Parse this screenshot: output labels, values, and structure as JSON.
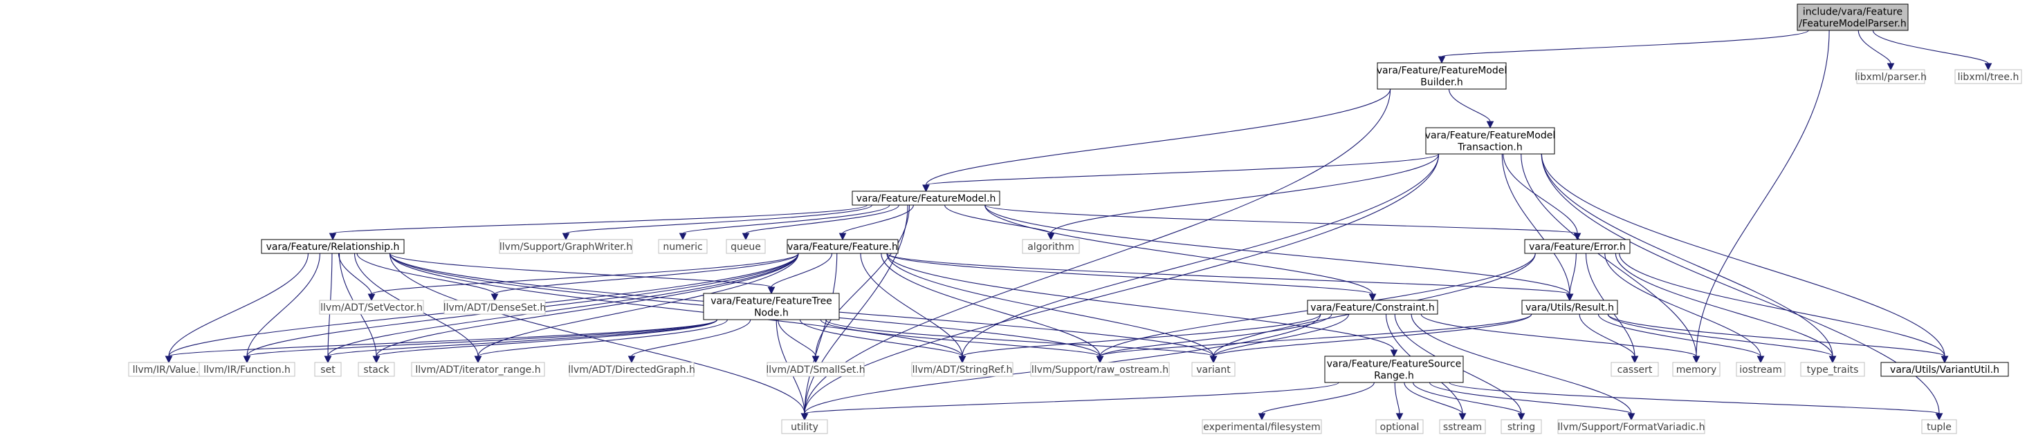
{
  "title": "include/vara/Feature/FeatureModelParser.h",
  "colors": {
    "edge": "#191970",
    "main_fill": "#bfbfbf",
    "external_border": "#bfbfbf",
    "border": "#000000"
  },
  "nodes": [
    {
      "id": "parser",
      "lines": [
        "include/vara/Feature",
        "/FeatureModelParser.h"
      ],
      "kind": "main"
    },
    {
      "id": "fmbuilder",
      "lines": [
        "vara/Feature/FeatureModel",
        "Builder.h"
      ],
      "kind": "internal"
    },
    {
      "id": "libxml_parser",
      "lines": [
        "libxml/parser.h"
      ],
      "kind": "external"
    },
    {
      "id": "libxml_tree",
      "lines": [
        "libxml/tree.h"
      ],
      "kind": "external"
    },
    {
      "id": "fmtransaction",
      "lines": [
        "vara/Feature/FeatureModel",
        "Transaction.h"
      ],
      "kind": "internal"
    },
    {
      "id": "featuremodel",
      "lines": [
        "vara/Feature/FeatureModel.h"
      ],
      "kind": "internal"
    },
    {
      "id": "relationship",
      "lines": [
        "vara/Feature/Relationship.h"
      ],
      "kind": "internal"
    },
    {
      "id": "graphwriter",
      "lines": [
        "llvm/Support/GraphWriter.h"
      ],
      "kind": "external"
    },
    {
      "id": "numeric",
      "lines": [
        "numeric"
      ],
      "kind": "external"
    },
    {
      "id": "queue",
      "lines": [
        "queue"
      ],
      "kind": "external"
    },
    {
      "id": "feature",
      "lines": [
        "vara/Feature/Feature.h"
      ],
      "kind": "internal"
    },
    {
      "id": "algorithm",
      "lines": [
        "algorithm"
      ],
      "kind": "external"
    },
    {
      "id": "error",
      "lines": [
        "vara/Feature/Error.h"
      ],
      "kind": "internal"
    },
    {
      "id": "setvector",
      "lines": [
        "llvm/ADT/SetVector.h"
      ],
      "kind": "external"
    },
    {
      "id": "denseset",
      "lines": [
        "llvm/ADT/DenseSet.h"
      ],
      "kind": "external"
    },
    {
      "id": "featuretree",
      "lines": [
        "vara/Feature/FeatureTree",
        "Node.h"
      ],
      "kind": "internal"
    },
    {
      "id": "constraint",
      "lines": [
        "vara/Feature/Constraint.h"
      ],
      "kind": "internal"
    },
    {
      "id": "result",
      "lines": [
        "vara/Utils/Result.h"
      ],
      "kind": "internal"
    },
    {
      "id": "irvalue",
      "lines": [
        "llvm/IR/Value.h"
      ],
      "kind": "external"
    },
    {
      "id": "irfunction",
      "lines": [
        "llvm/IR/Function.h"
      ],
      "kind": "external"
    },
    {
      "id": "set",
      "lines": [
        "set"
      ],
      "kind": "external"
    },
    {
      "id": "stack",
      "lines": [
        "stack"
      ],
      "kind": "external"
    },
    {
      "id": "iterrange",
      "lines": [
        "llvm/ADT/iterator_range.h"
      ],
      "kind": "external"
    },
    {
      "id": "directedgraph",
      "lines": [
        "llvm/ADT/DirectedGraph.h"
      ],
      "kind": "external"
    },
    {
      "id": "smallset",
      "lines": [
        "llvm/ADT/SmallSet.h"
      ],
      "kind": "external"
    },
    {
      "id": "stringref",
      "lines": [
        "llvm/ADT/StringRef.h"
      ],
      "kind": "external"
    },
    {
      "id": "rawostream",
      "lines": [
        "llvm/Support/raw_ostream.h"
      ],
      "kind": "external"
    },
    {
      "id": "variant",
      "lines": [
        "variant"
      ],
      "kind": "external"
    },
    {
      "id": "sourcerange",
      "lines": [
        "vara/Feature/FeatureSource",
        "Range.h"
      ],
      "kind": "internal"
    },
    {
      "id": "cassert",
      "lines": [
        "cassert"
      ],
      "kind": "external"
    },
    {
      "id": "memory",
      "lines": [
        "memory"
      ],
      "kind": "external"
    },
    {
      "id": "iostream",
      "lines": [
        "iostream"
      ],
      "kind": "external"
    },
    {
      "id": "typetraits",
      "lines": [
        "type_traits"
      ],
      "kind": "external"
    },
    {
      "id": "variantutil",
      "lines": [
        "vara/Utils/VariantUtil.h"
      ],
      "kind": "internal"
    },
    {
      "id": "utility",
      "lines": [
        "utility"
      ],
      "kind": "external"
    },
    {
      "id": "filesystem",
      "lines": [
        "experimental/filesystem"
      ],
      "kind": "external"
    },
    {
      "id": "optional",
      "lines": [
        "optional"
      ],
      "kind": "external"
    },
    {
      "id": "sstream",
      "lines": [
        "sstream"
      ],
      "kind": "external"
    },
    {
      "id": "string",
      "lines": [
        "string"
      ],
      "kind": "external"
    },
    {
      "id": "formatvariadic",
      "lines": [
        "llvm/Support/FormatVariadic.h"
      ],
      "kind": "external"
    },
    {
      "id": "tuple",
      "lines": [
        "tuple"
      ],
      "kind": "external"
    }
  ],
  "edges": [
    [
      "parser",
      "fmbuilder"
    ],
    [
      "parser",
      "libxml_parser"
    ],
    [
      "parser",
      "libxml_tree"
    ],
    [
      "parser",
      "memory"
    ],
    [
      "fmbuilder",
      "fmtransaction"
    ],
    [
      "fmbuilder",
      "featuremodel"
    ],
    [
      "fmbuilder",
      "utility"
    ],
    [
      "fmtransaction",
      "featuremodel"
    ],
    [
      "fmtransaction",
      "error"
    ],
    [
      "fmtransaction",
      "result"
    ],
    [
      "fmtransaction",
      "variantutil"
    ],
    [
      "fmtransaction",
      "algorithm"
    ],
    [
      "fmtransaction",
      "stringref"
    ],
    [
      "fmtransaction",
      "utility"
    ],
    [
      "fmtransaction",
      "memory"
    ],
    [
      "fmtransaction",
      "typetraits"
    ],
    [
      "fmtransaction",
      "tuple"
    ],
    [
      "featuremodel",
      "relationship"
    ],
    [
      "featuremodel",
      "graphwriter"
    ],
    [
      "featuremodel",
      "numeric"
    ],
    [
      "featuremodel",
      "queue"
    ],
    [
      "featuremodel",
      "feature"
    ],
    [
      "featuremodel",
      "algorithm"
    ],
    [
      "featuremodel",
      "error"
    ],
    [
      "featuremodel",
      "constraint"
    ],
    [
      "featuremodel",
      "result"
    ],
    [
      "featuremodel",
      "smallset"
    ],
    [
      "featuremodel",
      "utility"
    ],
    [
      "relationship",
      "setvector"
    ],
    [
      "relationship",
      "denseset"
    ],
    [
      "relationship",
      "featuretree"
    ],
    [
      "relationship",
      "irvalue"
    ],
    [
      "relationship",
      "irfunction"
    ],
    [
      "relationship",
      "set"
    ],
    [
      "relationship",
      "stack"
    ],
    [
      "relationship",
      "iterrange"
    ],
    [
      "relationship",
      "stringref"
    ],
    [
      "relationship",
      "rawostream"
    ],
    [
      "relationship",
      "variant"
    ],
    [
      "relationship",
      "utility"
    ],
    [
      "feature",
      "setvector"
    ],
    [
      "feature",
      "denseset"
    ],
    [
      "feature",
      "featuretree"
    ],
    [
      "feature",
      "constraint"
    ],
    [
      "feature",
      "sourcerange"
    ],
    [
      "feature",
      "irvalue"
    ],
    [
      "feature",
      "irfunction"
    ],
    [
      "feature",
      "set"
    ],
    [
      "feature",
      "stack"
    ],
    [
      "feature",
      "iterrange"
    ],
    [
      "feature",
      "stringref"
    ],
    [
      "feature",
      "rawostream"
    ],
    [
      "feature",
      "variant"
    ],
    [
      "feature",
      "utility"
    ],
    [
      "feature",
      "result"
    ],
    [
      "featuretree",
      "irvalue"
    ],
    [
      "featuretree",
      "irfunction"
    ],
    [
      "featuretree",
      "set"
    ],
    [
      "featuretree",
      "stack"
    ],
    [
      "featuretree",
      "iterrange"
    ],
    [
      "featuretree",
      "directedgraph"
    ],
    [
      "featuretree",
      "smallset"
    ],
    [
      "featuretree",
      "stringref"
    ],
    [
      "featuretree",
      "rawostream"
    ],
    [
      "featuretree",
      "variant"
    ],
    [
      "featuretree",
      "utility"
    ],
    [
      "constraint",
      "stringref"
    ],
    [
      "constraint",
      "rawostream"
    ],
    [
      "constraint",
      "variant"
    ],
    [
      "constraint",
      "memory"
    ],
    [
      "constraint",
      "sstream"
    ],
    [
      "constraint",
      "string"
    ],
    [
      "constraint",
      "formatvariadic"
    ],
    [
      "constraint",
      "utility"
    ],
    [
      "sourcerange",
      "utility"
    ],
    [
      "sourcerange",
      "filesystem"
    ],
    [
      "sourcerange",
      "optional"
    ],
    [
      "sourcerange",
      "sstream"
    ],
    [
      "sourcerange",
      "string"
    ],
    [
      "sourcerange",
      "formatvariadic"
    ],
    [
      "sourcerange",
      "tuple"
    ],
    [
      "error",
      "result"
    ],
    [
      "error",
      "variantutil"
    ],
    [
      "error",
      "rawostream"
    ],
    [
      "error",
      "variant"
    ],
    [
      "error",
      "cassert"
    ],
    [
      "error",
      "iostream"
    ],
    [
      "error",
      "typetraits"
    ],
    [
      "result",
      "variantutil"
    ],
    [
      "result",
      "rawostream"
    ],
    [
      "result",
      "variant"
    ],
    [
      "result",
      "cassert"
    ],
    [
      "result",
      "iostream"
    ],
    [
      "result",
      "typetraits"
    ]
  ]
}
